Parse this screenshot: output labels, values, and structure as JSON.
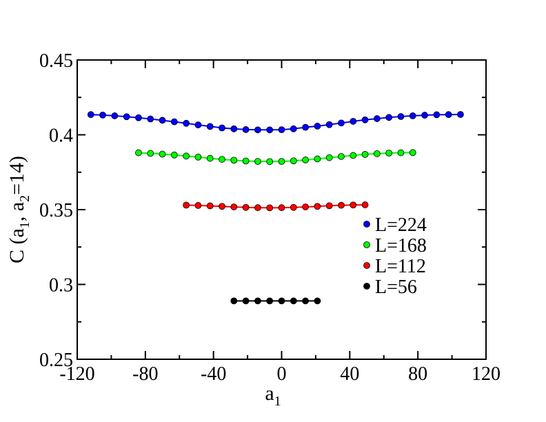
{
  "chart_data": {
    "type": "scatter",
    "xlabel": "a",
    "xlabel_sub": "1",
    "ylabel_parts": {
      "prefix": "C (a",
      "sub1": "1",
      "mid": ", a",
      "sub2": "2",
      "suffix": "=14)"
    },
    "xlim": [
      -120,
      120
    ],
    "ylim": [
      0.25,
      0.45
    ],
    "xticks": [
      -120,
      -80,
      -40,
      0,
      40,
      80,
      120
    ],
    "xtick_labels": [
      "-120",
      "-80",
      "-40",
      "0",
      "40",
      "80",
      "120"
    ],
    "yticks": [
      0.25,
      0.3,
      0.35,
      0.4,
      0.45
    ],
    "ytick_labels": [
      "0.25",
      "0.3",
      "0.35",
      "0.4",
      "0.45"
    ],
    "legend_position": "lower-right inside",
    "series": [
      {
        "name": "L=224",
        "color": "#0000ff",
        "x": [
          -112,
          -105,
          -98,
          -91,
          -84,
          -77,
          -70,
          -63,
          -56,
          -49,
          -42,
          -35,
          -28,
          -21,
          -14,
          -7,
          0,
          7,
          14,
          21,
          28,
          35,
          42,
          49,
          56,
          63,
          70,
          77,
          84,
          91,
          98,
          105
        ],
        "y": [
          0.4135,
          0.4132,
          0.4127,
          0.4121,
          0.4114,
          0.4106,
          0.4097,
          0.4087,
          0.4077,
          0.4066,
          0.4056,
          0.4046,
          0.404,
          0.4035,
          0.4033,
          0.4033,
          0.4034,
          0.404,
          0.405,
          0.4058,
          0.4068,
          0.4079,
          0.409,
          0.41,
          0.4108,
          0.4116,
          0.4122,
          0.4127,
          0.4131,
          0.4134,
          0.4135,
          0.4136
        ]
      },
      {
        "name": "L=168",
        "color": "#00ff00",
        "x": [
          -84,
          -77,
          -70,
          -63,
          -56,
          -49,
          -42,
          -35,
          -28,
          -21,
          -14,
          -7,
          0,
          7,
          14,
          21,
          28,
          35,
          42,
          49,
          56,
          63,
          70,
          77
        ],
        "y": [
          0.388,
          0.3876,
          0.3871,
          0.3865,
          0.3858,
          0.3851,
          0.3843,
          0.3836,
          0.383,
          0.3825,
          0.3822,
          0.3821,
          0.3822,
          0.3826,
          0.3832,
          0.3839,
          0.3847,
          0.3855,
          0.3862,
          0.3869,
          0.3874,
          0.3878,
          0.388,
          0.3881
        ]
      },
      {
        "name": "L=112",
        "color": "#ff0000",
        "x": [
          -56,
          -49,
          -42,
          -35,
          -28,
          -21,
          -14,
          -7,
          0,
          7,
          14,
          21,
          28,
          35,
          42,
          49
        ],
        "y": [
          0.353,
          0.3528,
          0.3525,
          0.3522,
          0.3518,
          0.3515,
          0.3513,
          0.3512,
          0.3513,
          0.3515,
          0.3518,
          0.3522,
          0.3526,
          0.3529,
          0.3531,
          0.3532
        ]
      },
      {
        "name": "L=56",
        "color": "#000000",
        "x": [
          -28,
          -21,
          -14,
          -7,
          0,
          7,
          14,
          21
        ],
        "y": [
          0.289,
          0.289,
          0.289,
          0.289,
          0.289,
          0.289,
          0.289,
          0.289
        ]
      }
    ]
  }
}
